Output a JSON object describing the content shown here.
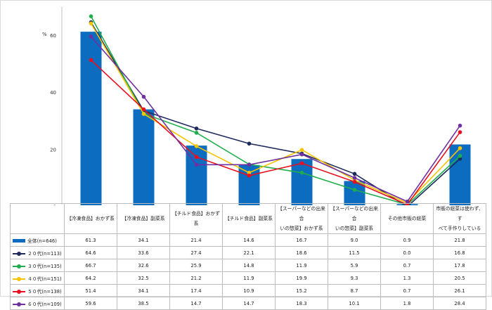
{
  "chart_data": {
    "type": "bar+line",
    "unit_label": "%",
    "ylim": [
      0,
      70
    ],
    "yticks": [
      0,
      20,
      40,
      60
    ],
    "grid": false,
    "categories": [
      "【冷凍食品】おかず系",
      "【冷凍食品】副菜系",
      "【チルド食品】おかず系",
      "【チルド食品】副菜系",
      "【スーパーなどの出来合いの惣菜】おかず系",
      "【スーパーなどの出来合いの惣菜】副菜系",
      "その他市販の総菜",
      "市販の総菜は使わず、すべて手作りしている"
    ],
    "category_lines": [
      [
        "【冷凍食品】おかず系"
      ],
      [
        "【冷凍食品】副菜系"
      ],
      [
        "【チルド食品】おかず系"
      ],
      [
        "【チルド食品】副菜系"
      ],
      [
        "【スーパーなどの出来合",
        "いの惣菜】おかず系"
      ],
      [
        "【スーパーなどの出来合",
        "いの惣菜】副菜系"
      ],
      [
        "その他市販の総菜"
      ],
      [
        "市販の総菜は使わず、す",
        "べて手作りしている"
      ]
    ],
    "series": [
      {
        "name": "全体(n=646)",
        "kind": "bar",
        "color": "#0b6cc0",
        "values": [
          61.3,
          34.1,
          21.4,
          14.6,
          16.7,
          9.0,
          0.9,
          21.8
        ]
      },
      {
        "name": "２０代(n=113)",
        "kind": "line",
        "color": "#1f2a5c",
        "values": [
          64.6,
          33.6,
          27.4,
          22.1,
          18.6,
          11.5,
          0.0,
          16.8
        ]
      },
      {
        "name": "３０代(n=135)",
        "kind": "line",
        "color": "#1fae4b",
        "values": [
          66.7,
          32.6,
          25.9,
          14.8,
          11.9,
          5.9,
          0.7,
          17.8
        ]
      },
      {
        "name": "４０代(n=151)",
        "kind": "line",
        "color": "#f5c400",
        "values": [
          64.2,
          32.5,
          21.2,
          11.9,
          19.9,
          9.3,
          1.3,
          20.5
        ]
      },
      {
        "name": "５０代(n=138)",
        "kind": "line",
        "color": "#e8101f",
        "values": [
          51.4,
          34.1,
          17.4,
          10.9,
          15.2,
          8.7,
          0.7,
          26.1
        ]
      },
      {
        "name": "６０代(n=109)",
        "kind": "line",
        "color": "#7030a0",
        "values": [
          59.6,
          38.5,
          14.7,
          14.7,
          18.3,
          10.1,
          1.8,
          28.4
        ]
      }
    ],
    "legend_placement": "data-table"
  }
}
